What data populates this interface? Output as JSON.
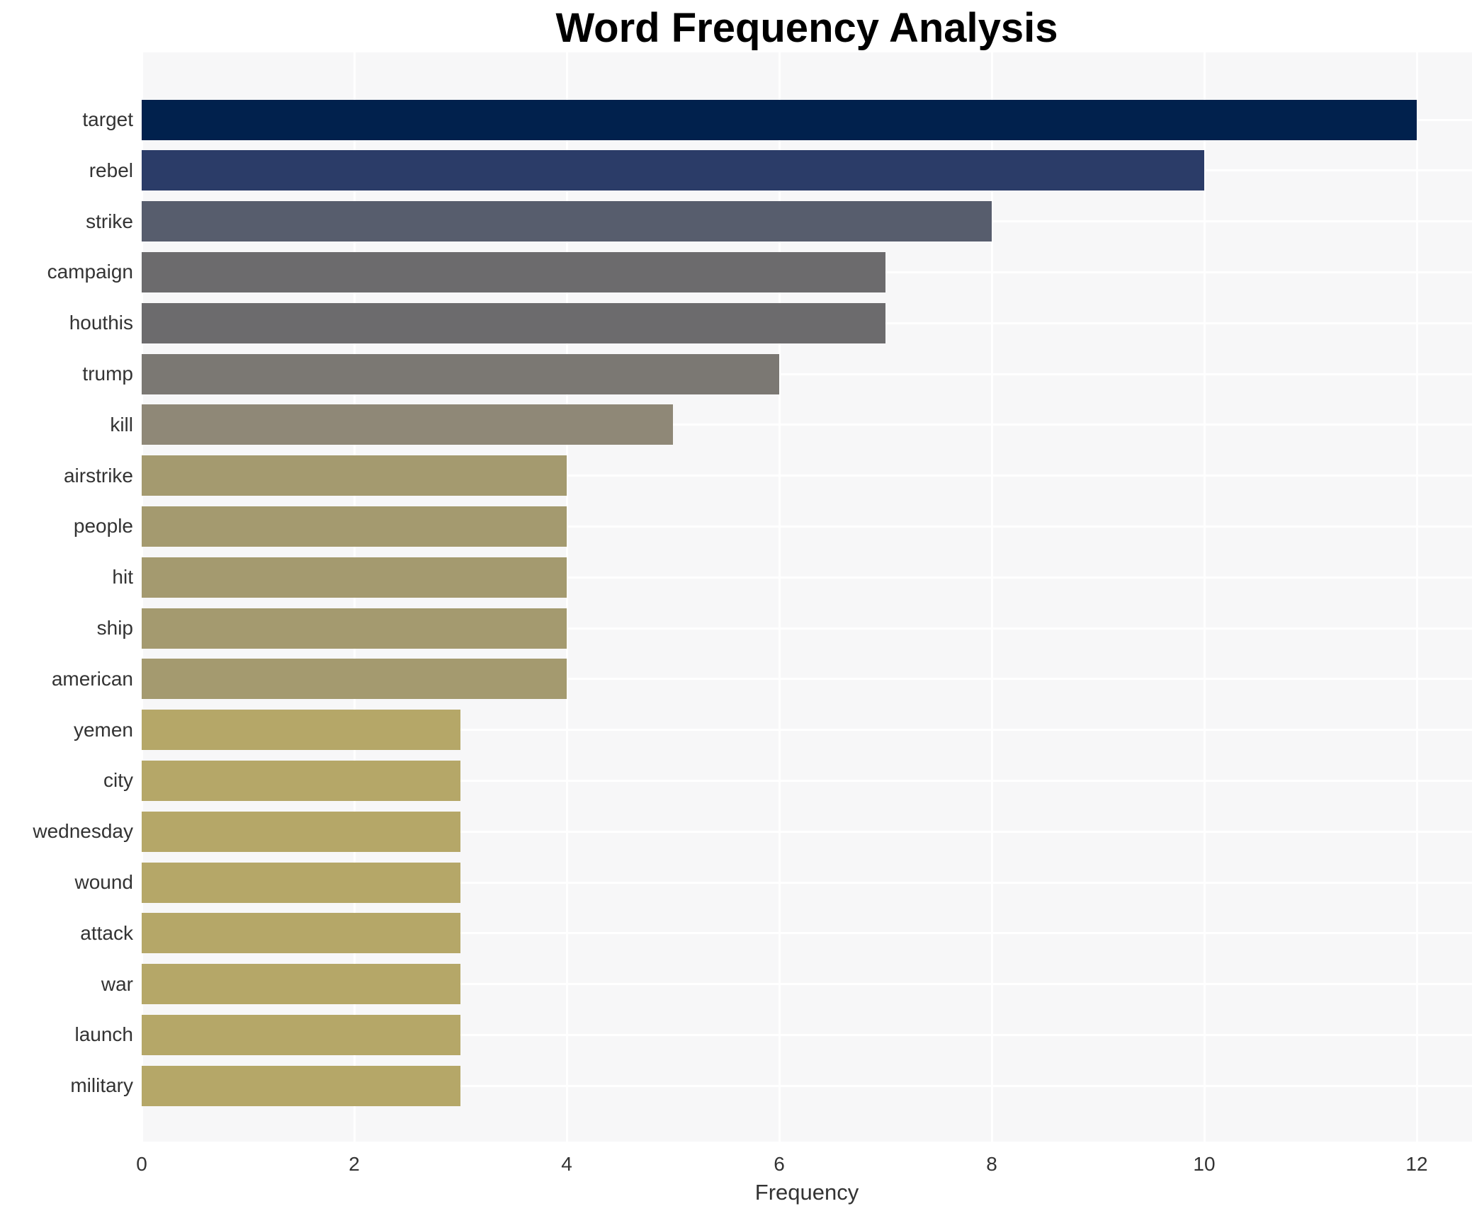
{
  "chart_data": {
    "type": "bar",
    "orientation": "horizontal",
    "title": "Word Frequency Analysis",
    "xlabel": "Frequency",
    "ylabel": "",
    "categories": [
      "target",
      "rebel",
      "strike",
      "campaign",
      "houthis",
      "trump",
      "kill",
      "airstrike",
      "people",
      "hit",
      "ship",
      "american",
      "yemen",
      "city",
      "wednesday",
      "wound",
      "attack",
      "war",
      "launch",
      "military"
    ],
    "values": [
      12,
      10,
      8,
      7,
      7,
      6,
      5,
      4,
      4,
      4,
      4,
      4,
      3,
      3,
      3,
      3,
      3,
      3,
      3,
      3
    ],
    "bar_colors": [
      "#01214d",
      "#2b3c68",
      "#575d6d",
      "#6c6b6d",
      "#6c6b6d",
      "#7b7873",
      "#8f8877",
      "#a49a6f",
      "#a49a6f",
      "#a49a6f",
      "#a49a6f",
      "#a49a6f",
      "#b5a768",
      "#b5a768",
      "#b5a768",
      "#b5a768",
      "#b5a768",
      "#b5a768",
      "#b5a768",
      "#b5a768"
    ],
    "xlim": [
      0,
      12.52
    ],
    "xticks": [
      0,
      2,
      4,
      6,
      8,
      10,
      12
    ],
    "grid": true,
    "legend_position": "none",
    "colors": {
      "figure_bg": "#ffffff",
      "plot_bg": "#f7f7f8",
      "grid": "#ffffff",
      "title_text": "#000000",
      "tick_text": "#333333",
      "axis_label_text": "#333333"
    }
  }
}
